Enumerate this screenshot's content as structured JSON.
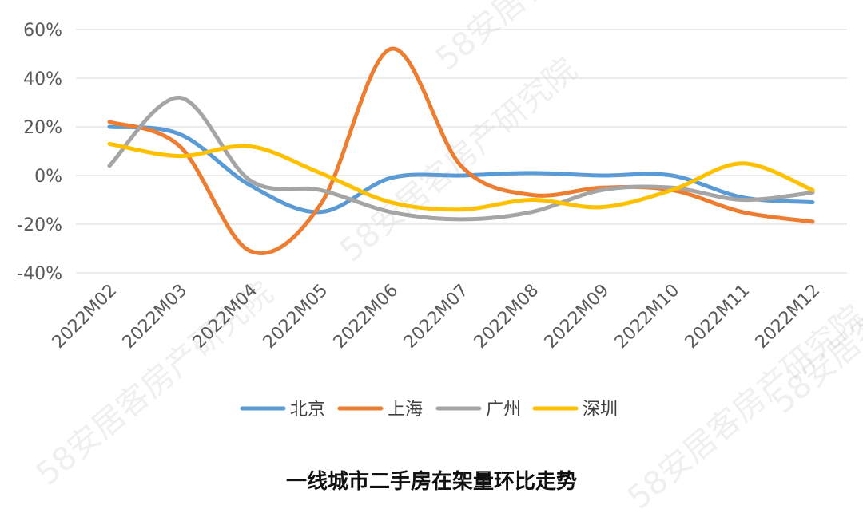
{
  "chart_data": {
    "type": "line",
    "title": "一线城市二手房在架量环比走势",
    "categories": [
      "2022M02",
      "2022M03",
      "2022M04",
      "2022M05",
      "2022M06",
      "2022M07",
      "2022M08",
      "2022M09",
      "2022M10",
      "2022M11",
      "2022M12"
    ],
    "ylim": [
      -40,
      60
    ],
    "yticks": [
      60,
      40,
      20,
      0,
      -20,
      -40
    ],
    "ytick_labels": [
      "60%",
      "40%",
      "20%",
      "0%",
      "-20%",
      "-40%"
    ],
    "grid": true,
    "legend_position": "bottom",
    "series": [
      {
        "name": "北京",
        "color": "#5B9BD5",
        "values": [
          20,
          17,
          -4,
          -15,
          -1,
          0,
          1,
          0,
          0,
          -9,
          -11
        ]
      },
      {
        "name": "上海",
        "color": "#ED7D31",
        "values": [
          22,
          12,
          -31,
          -12,
          52,
          4,
          -8,
          -5,
          -6,
          -15,
          -19
        ]
      },
      {
        "name": "广州",
        "color": "#A5A5A5",
        "values": [
          4,
          32,
          -2,
          -6,
          -15,
          -18,
          -15,
          -6,
          -5,
          -10,
          -7
        ]
      },
      {
        "name": "深圳",
        "color": "#FFC000",
        "values": [
          13,
          8,
          12,
          1,
          -11,
          -14,
          -10,
          -13,
          -6,
          5,
          -6
        ]
      }
    ]
  },
  "watermark": "58安居客房产研究院"
}
